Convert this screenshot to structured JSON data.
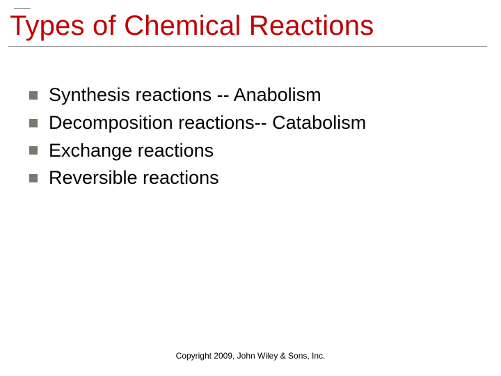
{
  "slide": {
    "title": "Types of Chemical Reactions",
    "title_color": "#c00000",
    "title_fontsize": 40,
    "rule_color": "#888888",
    "bullets": {
      "marker_color": "#7a776f",
      "marker_size": 12,
      "text_color": "#000000",
      "text_fontsize": 27,
      "items": [
        "Synthesis reactions -- Anabolism",
        "Decomposition reactions-- Catabolism",
        "Exchange reactions",
        "Reversible reactions"
      ]
    },
    "footer": "Copyright 2009, John Wiley & Sons, Inc.",
    "footer_fontsize": 12,
    "background_color": "#ffffff"
  }
}
